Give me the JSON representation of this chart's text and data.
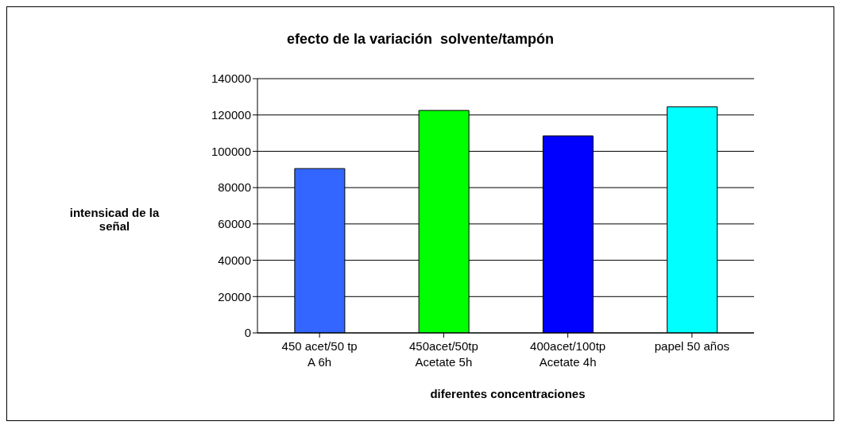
{
  "chart_data": {
    "type": "bar",
    "title": "efecto de la variación  solvente/tampón",
    "xlabel": "diferentes concentraciones",
    "ylabel": "intensicad de la\nseñal",
    "categories": [
      "450 acet/50 tp\nA 6h",
      "450acet/50tp\nAcetate 5h",
      "400acet/100tp\nAcetate 4h",
      "papel 50 años"
    ],
    "values": [
      90500,
      122500,
      108500,
      124500
    ],
    "colors": [
      "#3366ff",
      "#00ff00",
      "#0000ff",
      "#00ffff"
    ],
    "ylim": [
      0,
      140000
    ],
    "yticks": [
      0,
      20000,
      40000,
      60000,
      80000,
      100000,
      120000,
      140000
    ],
    "grid": "y"
  }
}
